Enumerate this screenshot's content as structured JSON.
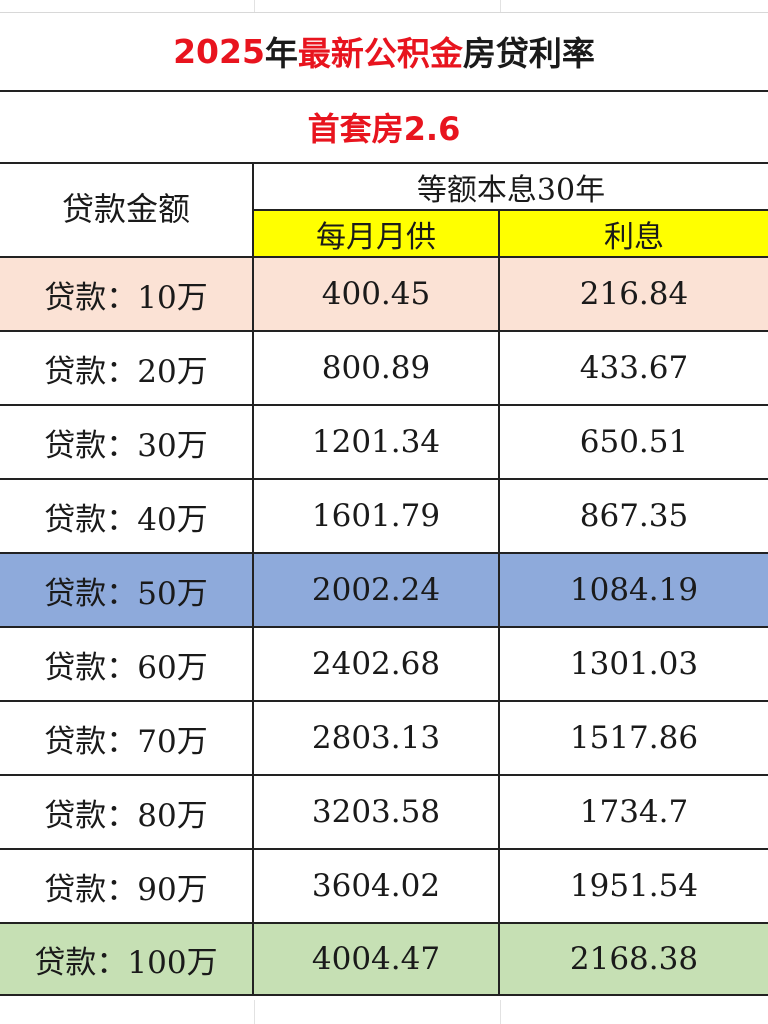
{
  "title": {
    "part1": "2025",
    "part2": "年",
    "part3": "最新公积金",
    "part4": "房贷利率"
  },
  "subtitle": "首套房2.6",
  "header": {
    "amount": "贷款金额",
    "group": "等额本息30年",
    "monthly": "每月月供",
    "interest": "利息"
  },
  "colors": {
    "title_red": "#e8141e",
    "header_yellow": "#ffff00",
    "row_10": "#fbe2d5",
    "row_50": "#8eaadb",
    "row_100": "#c6e0b4"
  },
  "rows": [
    {
      "amount": "贷款：10万",
      "monthly": "400.45",
      "interest": "216.84",
      "bg": "#fbe2d5"
    },
    {
      "amount": "贷款：20万",
      "monthly": "800.89",
      "interest": "433.67",
      "bg": "#ffffff"
    },
    {
      "amount": "贷款：30万",
      "monthly": "1201.34",
      "interest": "650.51",
      "bg": "#ffffff"
    },
    {
      "amount": "贷款：40万",
      "monthly": "1601.79",
      "interest": "867.35",
      "bg": "#ffffff"
    },
    {
      "amount": "贷款：50万",
      "monthly": "2002.24",
      "interest": "1084.19",
      "bg": "#8eaadb"
    },
    {
      "amount": "贷款：60万",
      "monthly": "2402.68",
      "interest": "1301.03",
      "bg": "#ffffff"
    },
    {
      "amount": "贷款：70万",
      "monthly": "2803.13",
      "interest": "1517.86",
      "bg": "#ffffff"
    },
    {
      "amount": "贷款：80万",
      "monthly": "3203.58",
      "interest": "1734.7",
      "bg": "#ffffff"
    },
    {
      "amount": "贷款：90万",
      "monthly": "3604.02",
      "interest": "1951.54",
      "bg": "#ffffff"
    },
    {
      "amount": "贷款：100万",
      "monthly": "4004.47",
      "interest": "2168.38",
      "bg": "#c6e0b4"
    }
  ]
}
